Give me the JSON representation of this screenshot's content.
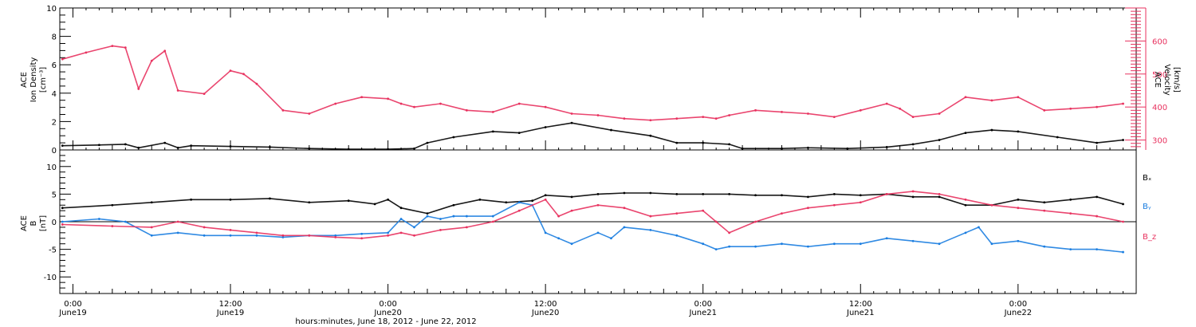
{
  "colors": {
    "density": "#000000",
    "velocity": "#e8325f",
    "bx": "#000000",
    "by": "#1a7de0",
    "bz": "#e8325f"
  },
  "axis": {
    "xlabel": "hours:minutes, June 18, 2012 - June 22, 2012",
    "time_ticks": [
      {
        "time": "0:00",
        "date": "June19"
      },
      {
        "time": "12:00",
        "date": "June19"
      },
      {
        "time": "0:00",
        "date": "June20"
      },
      {
        "time": "12:00",
        "date": "June20"
      },
      {
        "time": "0:00",
        "date": "June21"
      },
      {
        "time": "12:00",
        "date": "June21"
      },
      {
        "time": "0:00",
        "date": "June22"
      }
    ]
  },
  "top_panel": {
    "left_label": [
      "ACE",
      "Ion Density",
      "[cm⁻³]"
    ],
    "right_label": [
      "ACE",
      "Velocity",
      "[km/s]"
    ]
  },
  "bottom_panel": {
    "left_label": [
      "ACE",
      "B",
      "[nT]"
    ],
    "legend": [
      "Bₓ",
      "Bᵧ",
      "B_z"
    ]
  },
  "chart_data": [
    {
      "type": "scatter",
      "title": "",
      "xlabel": "hours:minutes, June 18, 2012 - June 22, 2012",
      "x_unit": "hours since 2012-06-19 00:00",
      "xlim": [
        -1,
        81
      ],
      "ylim_left": [
        0,
        10
      ],
      "ylim_right": [
        270,
        700
      ],
      "y_ticks_left": [
        0,
        2,
        4,
        6,
        8,
        10
      ],
      "y_ticks_right": [
        300,
        400,
        500,
        600
      ],
      "series": [
        {
          "name": "Ion Density",
          "axis": "left",
          "color": "#000000",
          "x": [
            -0.8,
            2,
            4,
            5,
            7,
            8,
            9,
            12,
            15,
            18,
            21,
            24,
            26,
            27,
            29,
            32,
            34,
            36,
            38,
            41,
            44,
            46,
            48,
            50,
            51,
            54,
            56,
            59,
            62,
            64,
            66,
            68,
            70,
            72,
            75,
            78,
            80
          ],
          "values": [
            0.3,
            0.35,
            0.4,
            0.15,
            0.5,
            0.15,
            0.3,
            0.25,
            0.2,
            0.1,
            0.05,
            0.05,
            0.1,
            0.5,
            0.9,
            1.3,
            1.2,
            1.6,
            1.9,
            1.4,
            1.0,
            0.5,
            0.5,
            0.4,
            0.1,
            0.1,
            0.15,
            0.1,
            0.2,
            0.4,
            0.7,
            1.2,
            1.4,
            1.3,
            0.9,
            0.5,
            0.7
          ]
        },
        {
          "name": "Velocity",
          "axis": "right",
          "color": "#e8325f",
          "x": [
            -0.8,
            1,
            3,
            4,
            5,
            6,
            7,
            8,
            10,
            12,
            13,
            14,
            16,
            18,
            20,
            22,
            24,
            25,
            26,
            28,
            30,
            32,
            34,
            36,
            38,
            40,
            42,
            44,
            46,
            48,
            49,
            50,
            52,
            54,
            56,
            58,
            60,
            62,
            63,
            64,
            66,
            68,
            70,
            72,
            74,
            76,
            78,
            80
          ],
          "values": [
            545,
            565,
            585,
            580,
            455,
            540,
            570,
            450,
            440,
            510,
            500,
            470,
            390,
            380,
            410,
            430,
            425,
            410,
            400,
            410,
            390,
            385,
            410,
            400,
            380,
            375,
            365,
            360,
            365,
            370,
            365,
            375,
            390,
            385,
            380,
            370,
            390,
            410,
            395,
            370,
            380,
            430,
            420,
            430,
            390,
            395,
            400,
            410
          ]
        }
      ]
    },
    {
      "type": "scatter",
      "title": "",
      "xlabel": "hours:minutes, June 18, 2012 - June 22, 2012",
      "x_unit": "hours since 2012-06-19 00:00",
      "xlim": [
        -1,
        81
      ],
      "ylim": [
        -13,
        13
      ],
      "y_ticks": [
        -10,
        -5,
        0,
        5,
        10
      ],
      "series": [
        {
          "name": "Bₓ",
          "color": "#000000",
          "x": [
            -0.8,
            3,
            6,
            9,
            12,
            15,
            18,
            21,
            23,
            24,
            25,
            27,
            29,
            31,
            33,
            35,
            36,
            38,
            40,
            42,
            44,
            46,
            48,
            50,
            52,
            54,
            56,
            58,
            60,
            62,
            64,
            66,
            68,
            70,
            72,
            74,
            76,
            78,
            80
          ],
          "values": [
            2.5,
            3,
            3.5,
            4,
            4,
            4.2,
            3.5,
            3.8,
            3.2,
            4,
            2.5,
            1.5,
            3,
            4,
            3.5,
            3.8,
            4.8,
            4.5,
            5,
            5.2,
            5.2,
            5,
            5,
            5,
            4.8,
            4.8,
            4.5,
            5,
            4.8,
            5,
            4.5,
            4.5,
            3,
            3,
            4,
            3.5,
            4,
            4.5,
            3.2
          ]
        },
        {
          "name": "Bᵧ",
          "color": "#1a7de0",
          "x": [
            -0.8,
            2,
            4,
            6,
            8,
            10,
            12,
            14,
            16,
            18,
            20,
            22,
            24,
            25,
            26,
            27,
            28,
            29,
            30,
            32,
            34,
            35,
            36,
            37,
            38,
            40,
            41,
            42,
            44,
            46,
            48,
            49,
            50,
            52,
            54,
            56,
            58,
            60,
            62,
            64,
            66,
            68,
            69,
            70,
            72,
            74,
            76,
            78,
            80
          ],
          "values": [
            0,
            0.5,
            0,
            -2.5,
            -2,
            -2.5,
            -2.5,
            -2.5,
            -2.8,
            -2.5,
            -2.5,
            -2.2,
            -2,
            0.5,
            -1,
            1,
            0.5,
            1,
            1,
            1,
            3.5,
            3,
            -2,
            -3,
            -4,
            -2,
            -3,
            -1,
            -1.5,
            -2.5,
            -4,
            -5,
            -4.5,
            -4.5,
            -4,
            -4.5,
            -4,
            -4,
            -3,
            -3.5,
            -4,
            -2,
            -1,
            -4,
            -3.5,
            -4.5,
            -5,
            -5,
            -5.5
          ]
        },
        {
          "name": "B_z",
          "color": "#e8325f",
          "x": [
            -0.8,
            3,
            6,
            8,
            10,
            12,
            14,
            16,
            18,
            20,
            22,
            24,
            25,
            26,
            28,
            30,
            32,
            34,
            36,
            37,
            38,
            40,
            42,
            44,
            46,
            48,
            49,
            50,
            52,
            54,
            56,
            58,
            60,
            62,
            64,
            66,
            68,
            70,
            72,
            74,
            76,
            78,
            80
          ],
          "values": [
            -0.5,
            -0.8,
            -1,
            0,
            -1,
            -1.5,
            -2,
            -2.5,
            -2.5,
            -2.8,
            -3,
            -2.5,
            -2,
            -2.5,
            -1.5,
            -1,
            0,
            2,
            4,
            1,
            2,
            3,
            2.5,
            1,
            1.5,
            2,
            0,
            -2,
            0,
            1.5,
            2.5,
            3,
            3.5,
            5,
            5.5,
            5,
            4,
            3,
            2.5,
            2,
            1.5,
            1,
            0
          ]
        }
      ]
    }
  ]
}
